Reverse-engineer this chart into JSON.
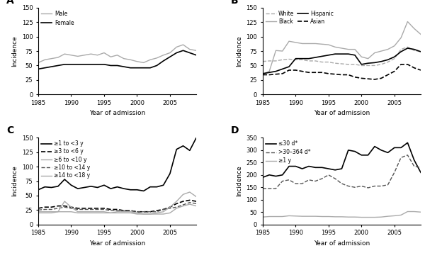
{
  "years": [
    1985,
    1986,
    1987,
    1988,
    1989,
    1990,
    1991,
    1992,
    1993,
    1994,
    1995,
    1996,
    1997,
    1998,
    1999,
    2000,
    2001,
    2002,
    2003,
    2004,
    2005,
    2006,
    2007,
    2008,
    2009
  ],
  "A_male": [
    55,
    60,
    62,
    64,
    70,
    68,
    66,
    68,
    70,
    68,
    72,
    65,
    68,
    62,
    60,
    57,
    55,
    60,
    63,
    68,
    72,
    82,
    86,
    78,
    76
  ],
  "A_female": [
    44,
    46,
    48,
    50,
    52,
    52,
    52,
    52,
    52,
    52,
    52,
    50,
    50,
    48,
    46,
    46,
    46,
    46,
    50,
    58,
    65,
    72,
    76,
    72,
    68
  ],
  "B_white": [
    57,
    58,
    58,
    60,
    61,
    60,
    60,
    58,
    58,
    56,
    56,
    54,
    53,
    52,
    52,
    50,
    50,
    50,
    52,
    56,
    62,
    78,
    82,
    76,
    74
  ],
  "B_black": [
    35,
    40,
    76,
    75,
    92,
    90,
    88,
    88,
    88,
    87,
    86,
    82,
    80,
    78,
    78,
    65,
    62,
    72,
    75,
    78,
    84,
    98,
    126,
    114,
    104
  ],
  "B_hispanic": [
    36,
    38,
    40,
    44,
    48,
    62,
    62,
    62,
    64,
    66,
    68,
    70,
    70,
    70,
    68,
    52,
    54,
    55,
    57,
    60,
    65,
    74,
    80,
    78,
    74
  ],
  "B_asian": [
    34,
    34,
    35,
    36,
    42,
    42,
    40,
    38,
    38,
    38,
    36,
    35,
    34,
    34,
    30,
    28,
    27,
    26,
    28,
    34,
    40,
    52,
    52,
    46,
    42
  ],
  "C_1to3": [
    60,
    65,
    64,
    66,
    78,
    68,
    62,
    64,
    66,
    64,
    68,
    62,
    65,
    62,
    60,
    60,
    58,
    65,
    65,
    68,
    88,
    130,
    136,
    128,
    150
  ],
  "C_3to6": [
    28,
    30,
    30,
    32,
    32,
    30,
    28,
    28,
    28,
    28,
    28,
    26,
    26,
    24,
    24,
    22,
    22,
    22,
    24,
    26,
    30,
    36,
    40,
    42,
    40
  ],
  "C_6to10": [
    22,
    22,
    22,
    22,
    22,
    22,
    20,
    20,
    20,
    20,
    20,
    20,
    20,
    20,
    20,
    18,
    18,
    18,
    18,
    18,
    20,
    28,
    32,
    35,
    32
  ],
  "C_10to14": [
    25,
    26,
    26,
    28,
    30,
    28,
    26,
    26,
    26,
    26,
    26,
    24,
    24,
    24,
    24,
    22,
    22,
    22,
    22,
    26,
    28,
    30,
    34,
    38,
    36
  ],
  "C_14to18": [
    20,
    20,
    20,
    22,
    40,
    30,
    22,
    22,
    22,
    22,
    22,
    20,
    22,
    22,
    22,
    20,
    18,
    18,
    20,
    22,
    30,
    40,
    52,
    56,
    48
  ],
  "D_le30": [
    190,
    200,
    195,
    200,
    235,
    235,
    225,
    235,
    230,
    230,
    225,
    220,
    225,
    300,
    295,
    280,
    280,
    315,
    300,
    290,
    310,
    310,
    330,
    260,
    210
  ],
  "D_30to364": [
    145,
    145,
    145,
    175,
    180,
    165,
    165,
    180,
    175,
    185,
    200,
    185,
    165,
    155,
    150,
    155,
    148,
    155,
    155,
    160,
    210,
    270,
    280,
    235,
    230
  ],
  "D_ge1y": [
    30,
    32,
    32,
    32,
    35,
    34,
    33,
    33,
    33,
    32,
    32,
    31,
    31,
    30,
    30,
    29,
    29,
    29,
    30,
    33,
    35,
    38,
    52,
    52,
    50
  ]
}
